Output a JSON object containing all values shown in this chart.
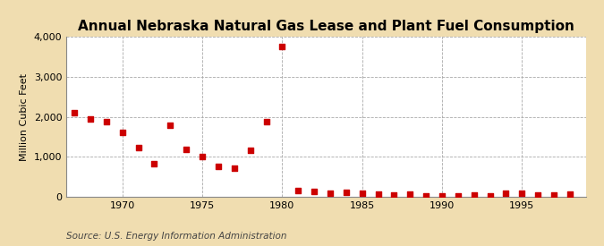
{
  "title": "Annual Nebraska Natural Gas Lease and Plant Fuel Consumption",
  "ylabel": "Million Cubic Feet",
  "source": "Source: U.S. Energy Information Administration",
  "fig_background_color": "#f0ddb0",
  "plot_background_color": "#ffffff",
  "marker_color": "#cc0000",
  "marker_size": 16,
  "xlim": [
    1966.5,
    1999
  ],
  "ylim": [
    0,
    4000
  ],
  "yticks": [
    0,
    1000,
    2000,
    3000,
    4000
  ],
  "xticks": [
    1970,
    1975,
    1980,
    1985,
    1990,
    1995
  ],
  "years": [
    1967,
    1968,
    1969,
    1970,
    1971,
    1972,
    1973,
    1974,
    1975,
    1976,
    1977,
    1978,
    1979,
    1980,
    1981,
    1982,
    1983,
    1984,
    1985,
    1986,
    1987,
    1988,
    1989,
    1990,
    1991,
    1992,
    1993,
    1994,
    1995,
    1996,
    1997,
    1998
  ],
  "values": [
    2100,
    1950,
    1870,
    1620,
    1240,
    820,
    1800,
    1180,
    1010,
    760,
    720,
    1160,
    1870,
    3760,
    155,
    130,
    100,
    110,
    95,
    70,
    50,
    60,
    30,
    20,
    30,
    50,
    30,
    80,
    100,
    50,
    40,
    60
  ],
  "title_fontsize": 11,
  "ylabel_fontsize": 8,
  "tick_fontsize": 8,
  "source_fontsize": 7.5
}
